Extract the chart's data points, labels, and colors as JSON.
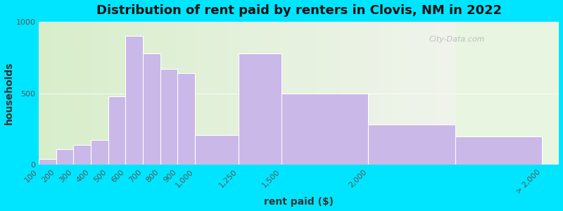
{
  "title": "Distribution of rent paid by renters in Clovis, NM in 2022",
  "xlabel": "rent paid ($)",
  "ylabel": "households",
  "bar_color": "#c9b8e8",
  "bar_edge_color": "#ffffff",
  "background_outer": "#00e5ff",
  "ylim": [
    0,
    1000
  ],
  "yticks": [
    0,
    500,
    1000
  ],
  "bin_edges": [
    100,
    200,
    300,
    400,
    500,
    600,
    700,
    800,
    900,
    1000,
    1250,
    1500,
    2000,
    2500
  ],
  "tick_labels": [
    "100",
    "200",
    "300",
    "400",
    "500",
    "600",
    "700",
    "800",
    "900",
    "1,000",
    "1,250",
    "1,500",
    "2,000",
    "> 2,000"
  ],
  "values": [
    40,
    110,
    140,
    175,
    480,
    900,
    775,
    670,
    640,
    210,
    775,
    500,
    280,
    200
  ],
  "title_fontsize": 13,
  "axis_label_fontsize": 10,
  "tick_fontsize": 8,
  "watermark_text": "City-Data.com"
}
